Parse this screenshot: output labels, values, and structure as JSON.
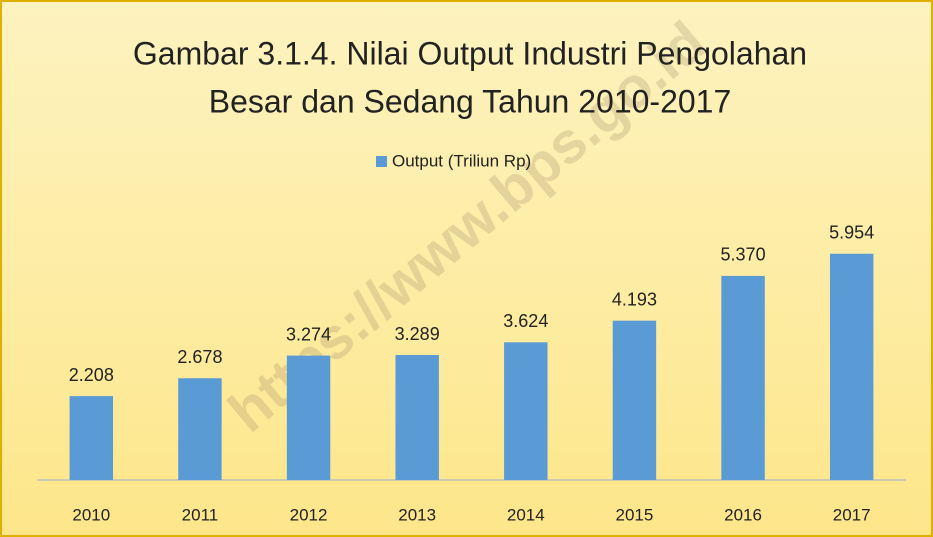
{
  "chart_data": {
    "type": "bar",
    "title": [
      "Gambar 3.1.4. Nilai Output Industri Pengolahan",
      "Besar dan Sedang Tahun 2010-2017"
    ],
    "watermark": "https://www.bps.go.id",
    "categories": [
      "2010",
      "2011",
      "2012",
      "2013",
      "2014",
      "2015",
      "2016",
      "2017"
    ],
    "series": [
      {
        "name": "Output (Triliun Rp)",
        "color": "#5b9bd5",
        "values": [
          2208,
          2678,
          3274,
          3289,
          3624,
          4193,
          5370,
          5954
        ],
        "value_labels": [
          "2.208",
          "2.678",
          "3.274",
          "3.289",
          "3.624",
          "4.193",
          "5.370",
          "5.954"
        ]
      }
    ],
    "ylim": [
      0,
      6000
    ],
    "legend": "top"
  }
}
